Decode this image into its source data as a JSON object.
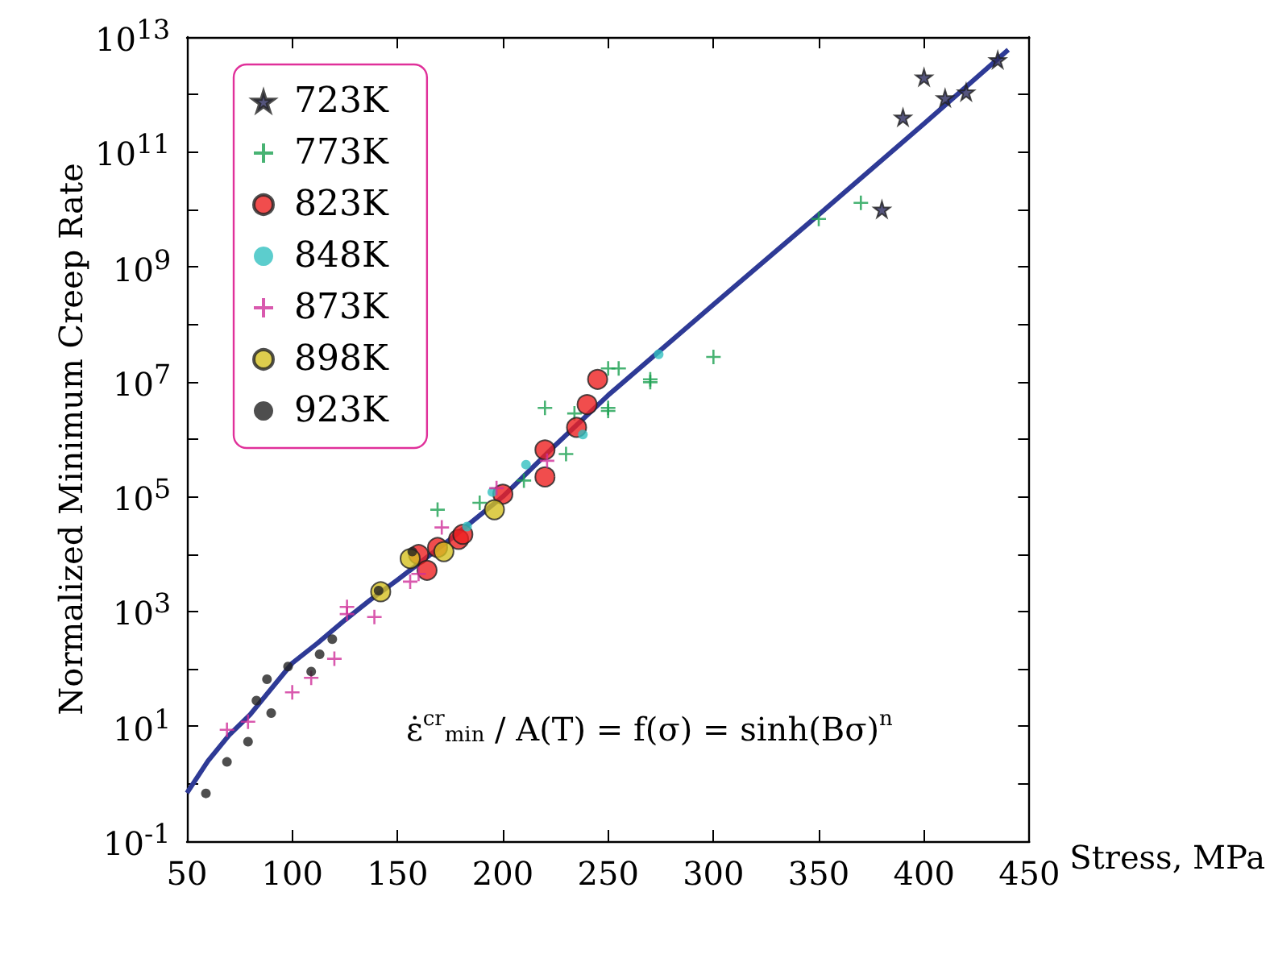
{
  "chart_data": {
    "type": "scatter",
    "xlabel": "Stress, MPa",
    "ylabel": "Normalized Minimum Creep Rate",
    "annotations": [
      "ε̇$^{cr}$$_{min}$ / A(T) = f(σ) = sinh(Bσ)$^{n}$"
    ],
    "xlim": [
      50,
      450
    ],
    "xticks": [
      50,
      100,
      150,
      200,
      250,
      300,
      350,
      400,
      450
    ],
    "ylim": [
      0.1,
      10000000000000.0
    ],
    "log": "y",
    "yticks": [
      {
        "value": 0.1,
        "label": "10$^{-1}$"
      },
      {
        "value": 1,
        "label": null
      },
      {
        "value": 10,
        "label": "10$^{1}$"
      },
      {
        "value": 100,
        "label": null
      },
      {
        "value": 1000,
        "label": "10$^{3}$"
      },
      {
        "value": 10000,
        "label": null
      },
      {
        "value": 100000,
        "label": "10$^{5}$"
      },
      {
        "value": 1000000,
        "label": null
      },
      {
        "value": 10000000,
        "label": "10$^{7}$"
      },
      {
        "value": 100000000,
        "label": null
      },
      {
        "value": 1000000000,
        "label": "10$^{9}$"
      },
      {
        "value": 10000000000,
        "label": null
      },
      {
        "value": 100000000000,
        "label": "10$^{11}$"
      },
      {
        "value": 1000000000000,
        "label": null
      },
      {
        "value": 10000000000000,
        "label": "10$^{13}$"
      }
    ],
    "grid": false,
    "legend": "top left",
    "series": [
      {
        "name": "723K",
        "color": "#2a2a5c",
        "marker": "star",
        "x": [
          380,
          390,
          400,
          410,
          420,
          435
        ],
        "values": [
          10000000000.0,
          400000000000.0,
          2000000000000.0,
          870000000000.0,
          1100000000000.0,
          4000000000000.0
        ]
      },
      {
        "name": "773K",
        "color": "#1aa050",
        "marker": "cross",
        "x": [
          169,
          189,
          210,
          220,
          230,
          234,
          250,
          250,
          250,
          255,
          270,
          270,
          300,
          350,
          370
        ],
        "values": [
          59000.0,
          78000.0,
          190000.0,
          3500000.0,
          550000.0,
          2800000.0,
          3500000.0,
          3100000.0,
          17000000.0,
          17000000.0,
          11000000.0,
          9800000.0,
          27000000.0,
          6800000000.0,
          13000000000.0
        ]
      },
      {
        "name": "823K",
        "color": "#ee2020",
        "marker": "circle",
        "x": [
          160,
          164,
          169,
          179,
          181,
          200,
          220,
          220,
          235,
          240,
          245
        ],
        "values": [
          9800,
          5200,
          13000,
          18000,
          22000,
          110000,
          650000,
          220000,
          1600000.0,
          4000000.0,
          11000000.0
        ]
      },
      {
        "name": "848K",
        "color": "#33c0c0",
        "marker": "circle",
        "x": [
          183,
          195,
          211,
          238,
          274
        ],
        "values": [
          30000,
          120000,
          360000,
          1200000.0,
          30000000.0
        ]
      },
      {
        "name": "873K",
        "color": "#d0309a",
        "marker": "cross",
        "x": [
          69,
          79,
          100,
          109,
          120,
          126,
          126,
          139,
          156,
          160,
          171,
          197,
          221
        ],
        "values": [
          8.7,
          12,
          39,
          70,
          150,
          1200,
          900,
          800,
          3300,
          4500,
          29000,
          140000,
          420000
        ]
      },
      {
        "name": "898K",
        "color": "#d4c020",
        "marker": "circle",
        "x": [
          142,
          156,
          172,
          196
        ],
        "values": [
          2200,
          8300,
          11000,
          59000
        ]
      },
      {
        "name": "923K",
        "color": "#222222",
        "marker": "circle",
        "x": [
          59,
          69,
          79,
          83,
          88,
          90,
          98,
          109,
          113,
          119,
          141,
          157
        ],
        "values": [
          0.68,
          2.4,
          5.4,
          28,
          66,
          17,
          110,
          90,
          180,
          330,
          2300,
          11000
        ]
      },
      {
        "type": "line",
        "color": "#2e3a96",
        "marker": "none",
        "line_style": "solid",
        "x": [
          50,
          60,
          70,
          80,
          90,
          100,
          112,
          125,
          137,
          150,
          175,
          200,
          225,
          250,
          300,
          350,
          400,
          440
        ],
        "values": [
          0.69,
          2.5,
          7,
          16,
          45,
          126,
          280,
          708,
          1580,
          3550,
          18000,
          100000,
          790000,
          5800000.0,
          220000000.0,
          8100000000.0,
          310000000000.0,
          6000000000000.0
        ]
      }
    ]
  }
}
